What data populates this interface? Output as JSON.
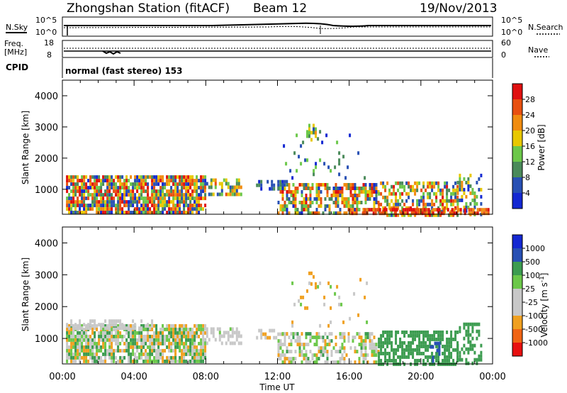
{
  "header": {
    "station": "Zhongshan Station (fitACF)",
    "beam": "Beam 12",
    "date": "19/Nov/2013"
  },
  "aux_panels": {
    "nsky_label": "N.Sky",
    "nsky_ticks": [
      "10^5",
      "10^0"
    ],
    "nsearch_label": "N.Search",
    "nsearch_ticks": [
      "10^5",
      "10^0"
    ],
    "freq_label_top": "Freq.",
    "freq_label_unit": "[MHz]",
    "freq_ticks": [
      "18",
      "8"
    ],
    "nave_label": "Nave",
    "nave_ticks": [
      "60",
      "0"
    ],
    "cpid_label": "CPID",
    "cpid_value": "normal (fast stereo) 153"
  },
  "colors": {
    "power_scale": [
      "#1428d2",
      "#2850b4",
      "#4a8a5a",
      "#6cc84a",
      "#e8c800",
      "#f08c10",
      "#e85010",
      "#e01010"
    ],
    "velocity_scale": [
      "#e81010",
      "#f06414",
      "#f0a020",
      "#c8c8c8",
      "#c8c8c8",
      "#6cc84a",
      "#3c9c50",
      "#2850b4",
      "#1428d2"
    ]
  },
  "chart_data": [
    {
      "type": "heatmap",
      "name": "Power",
      "ylabel": "Slant Range [km]",
      "ylim": [
        200,
        4500
      ],
      "yticks": [
        1000,
        2000,
        3000,
        4000
      ],
      "xlim": [
        0,
        24
      ],
      "colorbar_label": "Power [dB]",
      "colorbar_ticks": [
        "4",
        "8",
        "12",
        "16",
        "20",
        "24",
        "28"
      ],
      "colorbar_range": [
        0,
        30
      ],
      "seed": 7,
      "regions": [
        {
          "t0": 0.2,
          "t1": 8.0,
          "r0": 300,
          "r1": 1450,
          "fill": 0.82,
          "v0": 2,
          "v1": 30
        },
        {
          "t0": 7.9,
          "t1": 10.0,
          "r0": 850,
          "r1": 1350,
          "fill": 0.55,
          "v0": 6,
          "v1": 24
        },
        {
          "t0": 10.8,
          "t1": 12.5,
          "r0": 1000,
          "r1": 1300,
          "fill": 0.45,
          "v0": 2,
          "v1": 10
        },
        {
          "t0": 12.0,
          "t1": 17.6,
          "r0": 200,
          "r1": 1200,
          "fill": 0.55,
          "v0": 2,
          "v1": 28
        },
        {
          "t0": 12.3,
          "t1": 17.0,
          "r0": 1300,
          "r1": 2900,
          "fill": 0.06,
          "v0": 2,
          "v1": 14
        },
        {
          "t0": 13.6,
          "t1": 14.1,
          "r0": 2500,
          "r1": 3100,
          "fill": 0.35,
          "v0": 6,
          "v1": 20
        },
        {
          "t0": 17.6,
          "t1": 22.0,
          "r0": 200,
          "r1": 1250,
          "fill": 0.6,
          "v0": 4,
          "v1": 28
        },
        {
          "t0": 22.0,
          "t1": 23.4,
          "r0": 200,
          "r1": 1500,
          "fill": 0.42,
          "v0": 2,
          "v1": 22
        },
        {
          "t0": 16.0,
          "t1": 23.8,
          "r0": 200,
          "r1": 400,
          "fill": 0.7,
          "v0": 20,
          "v1": 30
        }
      ]
    },
    {
      "type": "heatmap",
      "name": "Velocity",
      "ylabel": "Slant Range [km]",
      "ylim": [
        200,
        4500
      ],
      "yticks": [
        1000,
        2000,
        3000,
        4000
      ],
      "xlim": [
        0,
        24
      ],
      "xticks": [
        "00:00",
        "04:00",
        "08:00",
        "12:00",
        "16:00",
        "20:00",
        "00:00"
      ],
      "xlabel": "Time UT",
      "colorbar_label": "Velocity [m s^-1]",
      "colorbar_ticks": [
        "-1000",
        "-500",
        "-100",
        "-25",
        "25",
        "100",
        "500",
        "1000"
      ],
      "seed": 11,
      "regions": [
        {
          "t0": 0.2,
          "t1": 8.0,
          "r0": 300,
          "r1": 1450,
          "fill": 0.82,
          "v0": -200,
          "v1": 200
        },
        {
          "t0": 0.2,
          "t1": 5.0,
          "r0": 1350,
          "r1": 1600,
          "fill": 0.5,
          "v0": -20,
          "v1": 20
        },
        {
          "t0": 7.9,
          "t1": 10.0,
          "r0": 850,
          "r1": 1350,
          "fill": 0.55,
          "v0": -60,
          "v1": 30
        },
        {
          "t0": 10.8,
          "t1": 12.5,
          "r0": 1000,
          "r1": 1300,
          "fill": 0.45,
          "v0": -150,
          "v1": 10
        },
        {
          "t0": 12.0,
          "t1": 17.6,
          "r0": 200,
          "r1": 1200,
          "fill": 0.55,
          "v0": -150,
          "v1": 120
        },
        {
          "t0": 12.3,
          "t1": 17.0,
          "r0": 1300,
          "r1": 2900,
          "fill": 0.06,
          "v0": -200,
          "v1": 100
        },
        {
          "t0": 13.6,
          "t1": 14.1,
          "r0": 2500,
          "r1": 3100,
          "fill": 0.35,
          "v0": -400,
          "v1": -100
        },
        {
          "t0": 17.6,
          "t1": 22.0,
          "r0": 200,
          "r1": 1250,
          "fill": 0.6,
          "v0": 100,
          "v1": 450
        },
        {
          "t0": 22.0,
          "t1": 23.4,
          "r0": 200,
          "r1": 1500,
          "fill": 0.42,
          "v0": 100,
          "v1": 400
        },
        {
          "t0": 20.5,
          "t1": 21.0,
          "r0": 250,
          "r1": 900,
          "fill": 0.5,
          "v0": 500,
          "v1": 1000
        }
      ]
    }
  ]
}
